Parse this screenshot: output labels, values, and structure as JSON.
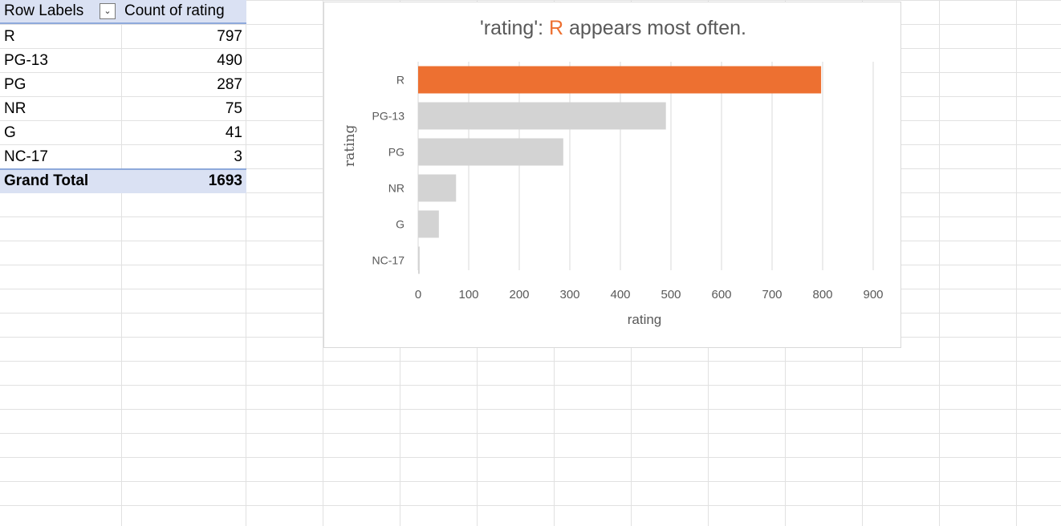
{
  "pivot": {
    "header": {
      "row_labels": "Row Labels",
      "count_label": "Count of rating"
    },
    "rows": [
      {
        "label": "R",
        "value": "797"
      },
      {
        "label": "PG-13",
        "value": "490"
      },
      {
        "label": "PG",
        "value": "287"
      },
      {
        "label": "NR",
        "value": "75"
      },
      {
        "label": "G",
        "value": "41"
      },
      {
        "label": "NC-17",
        "value": "3"
      }
    ],
    "total": {
      "label": "Grand Total",
      "value": "1693"
    },
    "filter_icon": "chevron-down-icon"
  },
  "chart_title": {
    "prefix": "'rating': ",
    "highlight": "R",
    "suffix": " appears most often."
  },
  "colors": {
    "highlight": "#ED7031",
    "bar": "#D3D3D3",
    "header_fill": "#DAE1F3",
    "header_border": "#8EA9DB"
  },
  "chart_data": {
    "type": "bar",
    "orientation": "horizontal",
    "categories": [
      "R",
      "PG-13",
      "PG",
      "NR",
      "G",
      "NC-17"
    ],
    "values": [
      797,
      490,
      287,
      75,
      41,
      3
    ],
    "title": "'rating': R appears most often.",
    "xlabel": "rating",
    "ylabel": "rating",
    "xlim": [
      0,
      900
    ],
    "xticks": [
      0,
      100,
      200,
      300,
      400,
      500,
      600,
      700,
      800,
      900
    ],
    "grid": true,
    "highlight_category": "R"
  }
}
